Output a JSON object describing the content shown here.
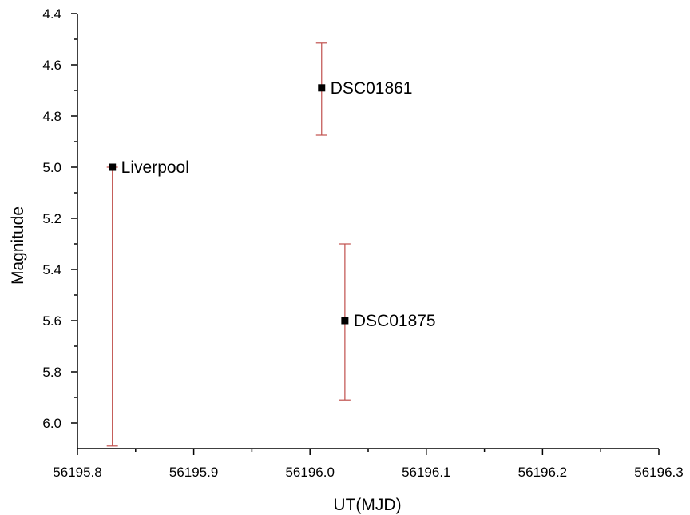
{
  "chart_data": {
    "type": "scatter",
    "title": "",
    "xlabel": "UT(MJD)",
    "ylabel": "Magnitude",
    "xlim": [
      56195.8,
      56196.3
    ],
    "ylim": [
      4.4,
      6.1
    ],
    "y_inverted": true,
    "grid": false,
    "x_ticks": [
      "56195.8",
      "56195.9",
      "56196.0",
      "56196.1",
      "56196.2",
      "56196.3"
    ],
    "y_ticks": [
      "4.4",
      "4.6",
      "4.8",
      "5.0",
      "5.2",
      "5.4",
      "5.6",
      "5.8",
      "6.0"
    ],
    "points": [
      {
        "label": "Liverpool",
        "x": 56195.83,
        "y": 5.0,
        "y_err_low": 5.0,
        "y_err_high": 6.09
      },
      {
        "label": "DSC01861",
        "x": 56196.01,
        "y": 4.69,
        "y_err_low": 4.515,
        "y_err_high": 4.875
      },
      {
        "label": "DSC01875",
        "x": 56196.03,
        "y": 5.6,
        "y_err_low": 5.3,
        "y_err_high": 5.91
      }
    ],
    "colors": {
      "marker": "#000000",
      "error_bar": "#c0504d",
      "axis": "#000000"
    }
  }
}
